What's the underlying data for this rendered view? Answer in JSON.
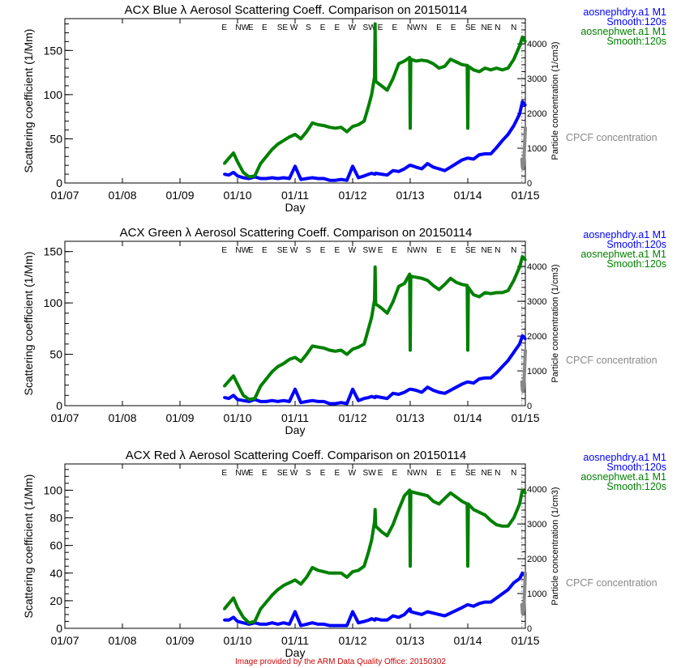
{
  "footer": "Image provided by the ARM Data Quality Office: 20150302",
  "colors": {
    "dry": "#0000ff",
    "wet": "#008000",
    "cpcf": "#888888",
    "axis": "#000000",
    "footer": "#cc0000"
  },
  "chart_data": [
    {
      "type": "line",
      "title": "ACX Blue λ Aerosol Scattering Coeff. Comparison on 20150114",
      "xlabel": "Day",
      "ylabel": "Scattering coefficient (1/Mm)",
      "y2label": "Particle concentration (1/cm3)",
      "xlim": [
        7,
        15
      ],
      "x_ticks": [
        "01/07",
        "01/08",
        "01/09",
        "01/10",
        "01/11",
        "01/12",
        "01/13",
        "01/14",
        "01/15"
      ],
      "ylim": [
        0,
        186
      ],
      "y_ticks": [
        0,
        50,
        100,
        150
      ],
      "y_minor": 10,
      "y2lim": [
        0,
        4725
      ],
      "y2_ticks": [
        0,
        1000,
        2000,
        3000,
        4000
      ],
      "legend": [
        "aosnephdry.a1 M1",
        "Smooth:120s",
        "aosnephwet.a1 M1",
        "Smooth:120s",
        "CPCF concentration"
      ],
      "wind_labels": [
        {
          "day": 9.77,
          "dir": "E"
        },
        {
          "day": 10.08,
          "dir": "NW"
        },
        {
          "day": 10.23,
          "dir": "E"
        },
        {
          "day": 10.47,
          "dir": "E"
        },
        {
          "day": 10.78,
          "dir": "SE"
        },
        {
          "day": 10.98,
          "dir": "W"
        },
        {
          "day": 11.23,
          "dir": "S"
        },
        {
          "day": 11.48,
          "dir": "E"
        },
        {
          "day": 11.73,
          "dir": "E"
        },
        {
          "day": 11.99,
          "dir": "W"
        },
        {
          "day": 12.29,
          "dir": "SW"
        },
        {
          "day": 12.48,
          "dir": "E"
        },
        {
          "day": 12.73,
          "dir": "E"
        },
        {
          "day": 13.06,
          "dir": "NW"
        },
        {
          "day": 13.24,
          "dir": "N"
        },
        {
          "day": 13.5,
          "dir": "E"
        },
        {
          "day": 13.75,
          "dir": "E"
        },
        {
          "day": 14.05,
          "dir": "SE"
        },
        {
          "day": 14.33,
          "dir": "NE"
        },
        {
          "day": 14.52,
          "dir": "N"
        },
        {
          "day": 14.8,
          "dir": "N"
        }
      ],
      "x": [
        9.77,
        9.85,
        9.93,
        10.0,
        10.1,
        10.2,
        10.3,
        10.4,
        10.5,
        10.6,
        10.7,
        10.8,
        10.9,
        11.0,
        11.1,
        11.2,
        11.3,
        11.4,
        11.5,
        11.6,
        11.7,
        11.8,
        11.9,
        12.0,
        12.1,
        12.2,
        12.28,
        12.33,
        12.38,
        12.39,
        12.4,
        12.5,
        12.6,
        12.7,
        12.8,
        12.9,
        12.99,
        13.0,
        13.01,
        13.1,
        13.2,
        13.3,
        13.4,
        13.5,
        13.6,
        13.7,
        13.8,
        13.9,
        13.99,
        14.0,
        14.01,
        14.1,
        14.2,
        14.3,
        14.4,
        14.5,
        14.6,
        14.7,
        14.8,
        14.9,
        14.95,
        15.0
      ],
      "series": [
        {
          "name": "aosnephdry.a1 M1",
          "color": "#0000ff",
          "values": [
            10,
            9,
            12,
            8,
            6,
            5,
            7,
            5,
            5,
            6,
            5,
            6,
            5,
            19,
            4,
            5,
            6,
            5,
            5,
            3,
            3,
            4,
            3,
            19,
            6,
            8,
            10,
            11,
            10,
            10,
            11,
            10,
            9,
            14,
            13,
            16,
            20,
            20,
            20,
            18,
            16,
            22,
            18,
            16,
            14,
            18,
            22,
            26,
            28,
            28,
            28,
            27,
            32,
            33,
            33,
            40,
            48,
            55,
            65,
            78,
            92,
            88
          ]
        },
        {
          "name": "aosnephwet.a1 M1",
          "color": "#008000",
          "values": [
            22,
            28,
            34,
            24,
            12,
            7,
            8,
            22,
            30,
            38,
            44,
            48,
            52,
            55,
            50,
            58,
            68,
            66,
            65,
            63,
            62,
            63,
            58,
            64,
            66,
            70,
            88,
            100,
            120,
            180,
            115,
            110,
            105,
            118,
            135,
            138,
            142,
            62,
            140,
            138,
            139,
            138,
            135,
            130,
            132,
            140,
            137,
            134,
            133,
            62,
            132,
            128,
            126,
            130,
            128,
            130,
            128,
            130,
            140,
            155,
            165,
            160
          ]
        },
        {
          "name": "CPCF concentration",
          "color": "#888888",
          "axis": "right",
          "x": [
            14.94,
            14.95,
            14.96,
            14.97,
            14.98,
            14.99,
            15.0
          ],
          "values": [
            700,
            450,
            400,
            500,
            800,
            1200,
            1600
          ]
        }
      ]
    },
    {
      "type": "line",
      "title": "ACX Green λ Aerosol Scattering Coeff. Comparison on 20150114",
      "xlabel": "Day",
      "ylabel": "Scattering coefficient (1/Mm)",
      "y2label": "Particle concentration (1/cm3)",
      "xlim": [
        7,
        15
      ],
      "x_ticks": [
        "01/07",
        "01/08",
        "01/09",
        "01/10",
        "01/11",
        "01/12",
        "01/13",
        "01/14",
        "01/15"
      ],
      "ylim": [
        0,
        160
      ],
      "y_ticks": [
        0,
        50,
        100,
        150
      ],
      "y_minor": 10,
      "y2lim": [
        0,
        4725
      ],
      "y2_ticks": [
        0,
        1000,
        2000,
        3000,
        4000
      ],
      "legend": [
        "aosnephdry.a1 M1",
        "Smooth:120s",
        "aosnephwet.a1 M1",
        "Smooth:120s",
        "CPCF concentration"
      ],
      "wind_labels": [
        {
          "day": 9.77,
          "dir": "E"
        },
        {
          "day": 10.08,
          "dir": "NW"
        },
        {
          "day": 10.23,
          "dir": "E"
        },
        {
          "day": 10.47,
          "dir": "E"
        },
        {
          "day": 10.78,
          "dir": "SE"
        },
        {
          "day": 10.98,
          "dir": "W"
        },
        {
          "day": 11.23,
          "dir": "S"
        },
        {
          "day": 11.48,
          "dir": "E"
        },
        {
          "day": 11.73,
          "dir": "E"
        },
        {
          "day": 11.99,
          "dir": "W"
        },
        {
          "day": 12.29,
          "dir": "SW"
        },
        {
          "day": 12.48,
          "dir": "E"
        },
        {
          "day": 12.73,
          "dir": "E"
        },
        {
          "day": 13.06,
          "dir": "NW"
        },
        {
          "day": 13.24,
          "dir": "N"
        },
        {
          "day": 13.5,
          "dir": "E"
        },
        {
          "day": 13.75,
          "dir": "E"
        },
        {
          "day": 14.05,
          "dir": "SE"
        },
        {
          "day": 14.33,
          "dir": "NE"
        },
        {
          "day": 14.52,
          "dir": "N"
        },
        {
          "day": 14.8,
          "dir": "N"
        }
      ],
      "x": [
        9.77,
        9.85,
        9.93,
        10.0,
        10.1,
        10.2,
        10.3,
        10.4,
        10.5,
        10.6,
        10.7,
        10.8,
        10.9,
        11.0,
        11.1,
        11.2,
        11.3,
        11.4,
        11.5,
        11.6,
        11.7,
        11.8,
        11.9,
        12.0,
        12.1,
        12.2,
        12.28,
        12.33,
        12.38,
        12.39,
        12.4,
        12.5,
        12.6,
        12.7,
        12.8,
        12.9,
        12.99,
        13.0,
        13.01,
        13.1,
        13.2,
        13.3,
        13.4,
        13.5,
        13.6,
        13.7,
        13.8,
        13.9,
        13.99,
        14.0,
        14.01,
        14.1,
        14.2,
        14.3,
        14.4,
        14.5,
        14.6,
        14.7,
        14.8,
        14.9,
        14.95,
        15.0
      ],
      "series": [
        {
          "name": "aosnephdry.a1 M1",
          "color": "#0000ff",
          "values": [
            8,
            7,
            10,
            6,
            5,
            4,
            6,
            4,
            4,
            5,
            4,
            5,
            4,
            16,
            3,
            4,
            5,
            4,
            4,
            2,
            2,
            3,
            2,
            16,
            5,
            7,
            8,
            9,
            8,
            8,
            9,
            8,
            7,
            12,
            11,
            13,
            16,
            16,
            16,
            15,
            13,
            18,
            15,
            13,
            12,
            15,
            18,
            21,
            23,
            23,
            23,
            22,
            26,
            27,
            27,
            32,
            38,
            44,
            52,
            60,
            68,
            65
          ]
        },
        {
          "name": "aosnephwet.a1 M1",
          "color": "#008000",
          "values": [
            19,
            24,
            29,
            21,
            10,
            6,
            7,
            19,
            26,
            33,
            38,
            41,
            45,
            47,
            43,
            50,
            58,
            57,
            56,
            54,
            53,
            54,
            50,
            55,
            57,
            60,
            76,
            86,
            103,
            135,
            99,
            95,
            90,
            101,
            116,
            119,
            128,
            54,
            126,
            125,
            124,
            122,
            117,
            113,
            118,
            124,
            120,
            118,
            117,
            54,
            115,
            108,
            106,
            110,
            109,
            110,
            110,
            112,
            122,
            135,
            145,
            142
          ]
        },
        {
          "name": "CPCF concentration",
          "color": "#888888",
          "axis": "right",
          "x": [
            14.94,
            14.95,
            14.96,
            14.97,
            14.98,
            14.99,
            15.0
          ],
          "values": [
            700,
            450,
            400,
            500,
            800,
            1200,
            1600
          ]
        }
      ]
    },
    {
      "type": "line",
      "title": "ACX Red λ Aerosol Scattering Coeff. Comparison on 20150114",
      "xlabel": "Day",
      "ylabel": "Scattering coefficient (1/Mm)",
      "y2label": "Particle concentration (1/cm3)",
      "xlim": [
        7,
        15
      ],
      "x_ticks": [
        "01/07",
        "01/08",
        "01/09",
        "01/10",
        "01/11",
        "01/12",
        "01/13",
        "01/14",
        "01/15"
      ],
      "ylim": [
        0,
        119
      ],
      "y_ticks": [
        0,
        20,
        40,
        60,
        80,
        100
      ],
      "y_minor": 5,
      "y2lim": [
        0,
        4725
      ],
      "y2_ticks": [
        0,
        1000,
        2000,
        3000,
        4000
      ],
      "legend": [
        "aosnephdry.a1 M1",
        "Smooth:120s",
        "aosnephwet.a1 M1",
        "Smooth:120s",
        "CPCF concentration"
      ],
      "wind_labels": [
        {
          "day": 9.77,
          "dir": "E"
        },
        {
          "day": 10.08,
          "dir": "NW"
        },
        {
          "day": 10.23,
          "dir": "E"
        },
        {
          "day": 10.47,
          "dir": "E"
        },
        {
          "day": 10.78,
          "dir": "SE"
        },
        {
          "day": 10.98,
          "dir": "W"
        },
        {
          "day": 11.23,
          "dir": "S"
        },
        {
          "day": 11.48,
          "dir": "E"
        },
        {
          "day": 11.73,
          "dir": "E"
        },
        {
          "day": 11.99,
          "dir": "W"
        },
        {
          "day": 12.29,
          "dir": "SW"
        },
        {
          "day": 12.48,
          "dir": "E"
        },
        {
          "day": 12.73,
          "dir": "E"
        },
        {
          "day": 13.06,
          "dir": "NW"
        },
        {
          "day": 13.24,
          "dir": "N"
        },
        {
          "day": 13.5,
          "dir": "E"
        },
        {
          "day": 13.75,
          "dir": "E"
        },
        {
          "day": 14.05,
          "dir": "SE"
        },
        {
          "day": 14.33,
          "dir": "NE"
        },
        {
          "day": 14.52,
          "dir": "N"
        },
        {
          "day": 14.8,
          "dir": "N"
        }
      ],
      "x": [
        9.77,
        9.85,
        9.93,
        10.0,
        10.1,
        10.2,
        10.3,
        10.4,
        10.5,
        10.6,
        10.7,
        10.8,
        10.9,
        11.0,
        11.1,
        11.2,
        11.3,
        11.4,
        11.5,
        11.6,
        11.7,
        11.8,
        11.9,
        12.0,
        12.1,
        12.2,
        12.28,
        12.33,
        12.38,
        12.39,
        12.4,
        12.5,
        12.6,
        12.7,
        12.8,
        12.9,
        12.99,
        13.0,
        13.01,
        13.1,
        13.2,
        13.3,
        13.4,
        13.5,
        13.6,
        13.7,
        13.8,
        13.9,
        13.99,
        14.0,
        14.01,
        14.1,
        14.2,
        14.3,
        14.4,
        14.5,
        14.6,
        14.7,
        14.8,
        14.9,
        14.95,
        15.0
      ],
      "series": [
        {
          "name": "aosnephdry.a1 M1",
          "color": "#0000ff",
          "values": [
            6,
            6,
            8,
            5,
            4,
            3,
            4,
            3,
            3,
            4,
            3,
            4,
            3,
            12,
            2,
            3,
            4,
            3,
            3,
            2,
            2,
            2,
            2,
            12,
            4,
            5,
            6,
            7,
            6,
            6,
            7,
            6,
            6,
            9,
            8,
            10,
            14,
            14,
            12,
            11,
            10,
            12,
            11,
            10,
            9,
            11,
            13,
            15,
            17,
            17,
            17,
            16,
            18,
            19,
            19,
            22,
            25,
            28,
            33,
            36,
            40,
            38
          ]
        },
        {
          "name": "aosnephwet.a1 M1",
          "color": "#008000",
          "values": [
            14,
            18,
            22,
            15,
            8,
            4,
            5,
            14,
            19,
            24,
            28,
            31,
            33,
            35,
            32,
            37,
            44,
            42,
            41,
            40,
            40,
            40,
            37,
            41,
            42,
            45,
            56,
            64,
            77,
            86,
            74,
            70,
            67,
            75,
            86,
            96,
            100,
            45,
            99,
            98,
            97,
            96,
            92,
            90,
            94,
            98,
            95,
            92,
            90,
            45,
            90,
            86,
            84,
            82,
            78,
            75,
            74,
            74,
            80,
            90,
            100,
            98
          ]
        },
        {
          "name": "CPCF concentration",
          "color": "#888888",
          "axis": "right",
          "x": [
            14.94,
            14.95,
            14.96,
            14.97,
            14.98,
            14.99,
            15.0
          ],
          "values": [
            700,
            450,
            400,
            500,
            800,
            1200,
            1600
          ]
        }
      ]
    }
  ]
}
